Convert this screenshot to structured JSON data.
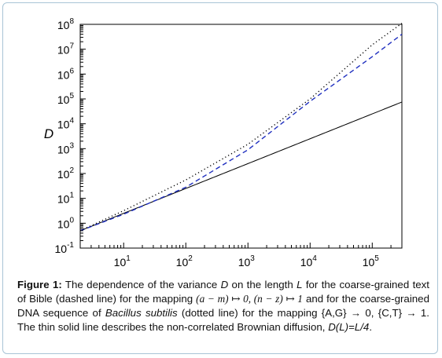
{
  "chart_data": {
    "type": "line",
    "xscale": "log",
    "yscale": "log",
    "xlim": [
      2,
      300000
    ],
    "ylim": [
      0.1,
      100000000
    ],
    "xlabel": "L",
    "ylabel": "D",
    "xticks": [
      {
        "value": 10,
        "base": "10",
        "exp": "1"
      },
      {
        "value": 100,
        "base": "10",
        "exp": "2"
      },
      {
        "value": 1000,
        "base": "10",
        "exp": "3"
      },
      {
        "value": 10000,
        "base": "10",
        "exp": "4"
      },
      {
        "value": 100000,
        "base": "10",
        "exp": "5"
      }
    ],
    "yticks": [
      {
        "value": 0.1,
        "base": "10",
        "exp": "-1"
      },
      {
        "value": 1,
        "base": "10",
        "exp": "0"
      },
      {
        "value": 10,
        "base": "10",
        "exp": "1"
      },
      {
        "value": 100,
        "base": "10",
        "exp": "2"
      },
      {
        "value": 1000,
        "base": "10",
        "exp": "3"
      },
      {
        "value": 10000,
        "base": "10",
        "exp": "4"
      },
      {
        "value": 100000,
        "base": "10",
        "exp": "5"
      },
      {
        "value": 1000000,
        "base": "10",
        "exp": "6"
      },
      {
        "value": 10000000,
        "base": "10",
        "exp": "7"
      },
      {
        "value": 100000000,
        "base": "10",
        "exp": "8"
      }
    ],
    "grid": false,
    "legend": "none",
    "series": [
      {
        "style": "solid",
        "color": "#000000",
        "x": [
          2,
          10,
          100,
          1000,
          10000,
          100000,
          300000
        ],
        "y": [
          0.5,
          2.5,
          25,
          250,
          2500,
          25000,
          75000
        ]
      },
      {
        "style": "dashed",
        "color": "#1f2fbf",
        "x": [
          2,
          10,
          100,
          1000,
          10000,
          100000,
          300000
        ],
        "y": [
          0.5,
          2.3,
          28,
          900,
          80000,
          5000000,
          40000000
        ]
      },
      {
        "style": "dotted",
        "color": "#000000",
        "x": [
          2,
          10,
          100,
          1000,
          10000,
          100000,
          300000
        ],
        "y": [
          0.5,
          3.2,
          55,
          1500,
          100000,
          15000000,
          110000000
        ]
      }
    ]
  },
  "caption": {
    "figure_label": "Figure 1:",
    "part1": " The dependence of the variance ",
    "var_d": "D",
    "part2": " on the length ",
    "var_l": "L",
    "part3": " for the coarse-grained text of Bible (dashed line) for the mapping ",
    "map_a": "(a − m)",
    "map_arrow1": " ↦ 0, ",
    "map_n": "(n − z)",
    "map_arrow2": " ↦ 1",
    "part4": " and for the coarse-grained DNA sequence of ",
    "species": "Bacillus subtilis",
    "part5": " (dotted line) for the mapping {A,G} → 0, {C,T} → 1. The thin solid line describes the non-correlated Brownian diffusion, ",
    "formula": "D(L)=L/4",
    "part6": "."
  }
}
